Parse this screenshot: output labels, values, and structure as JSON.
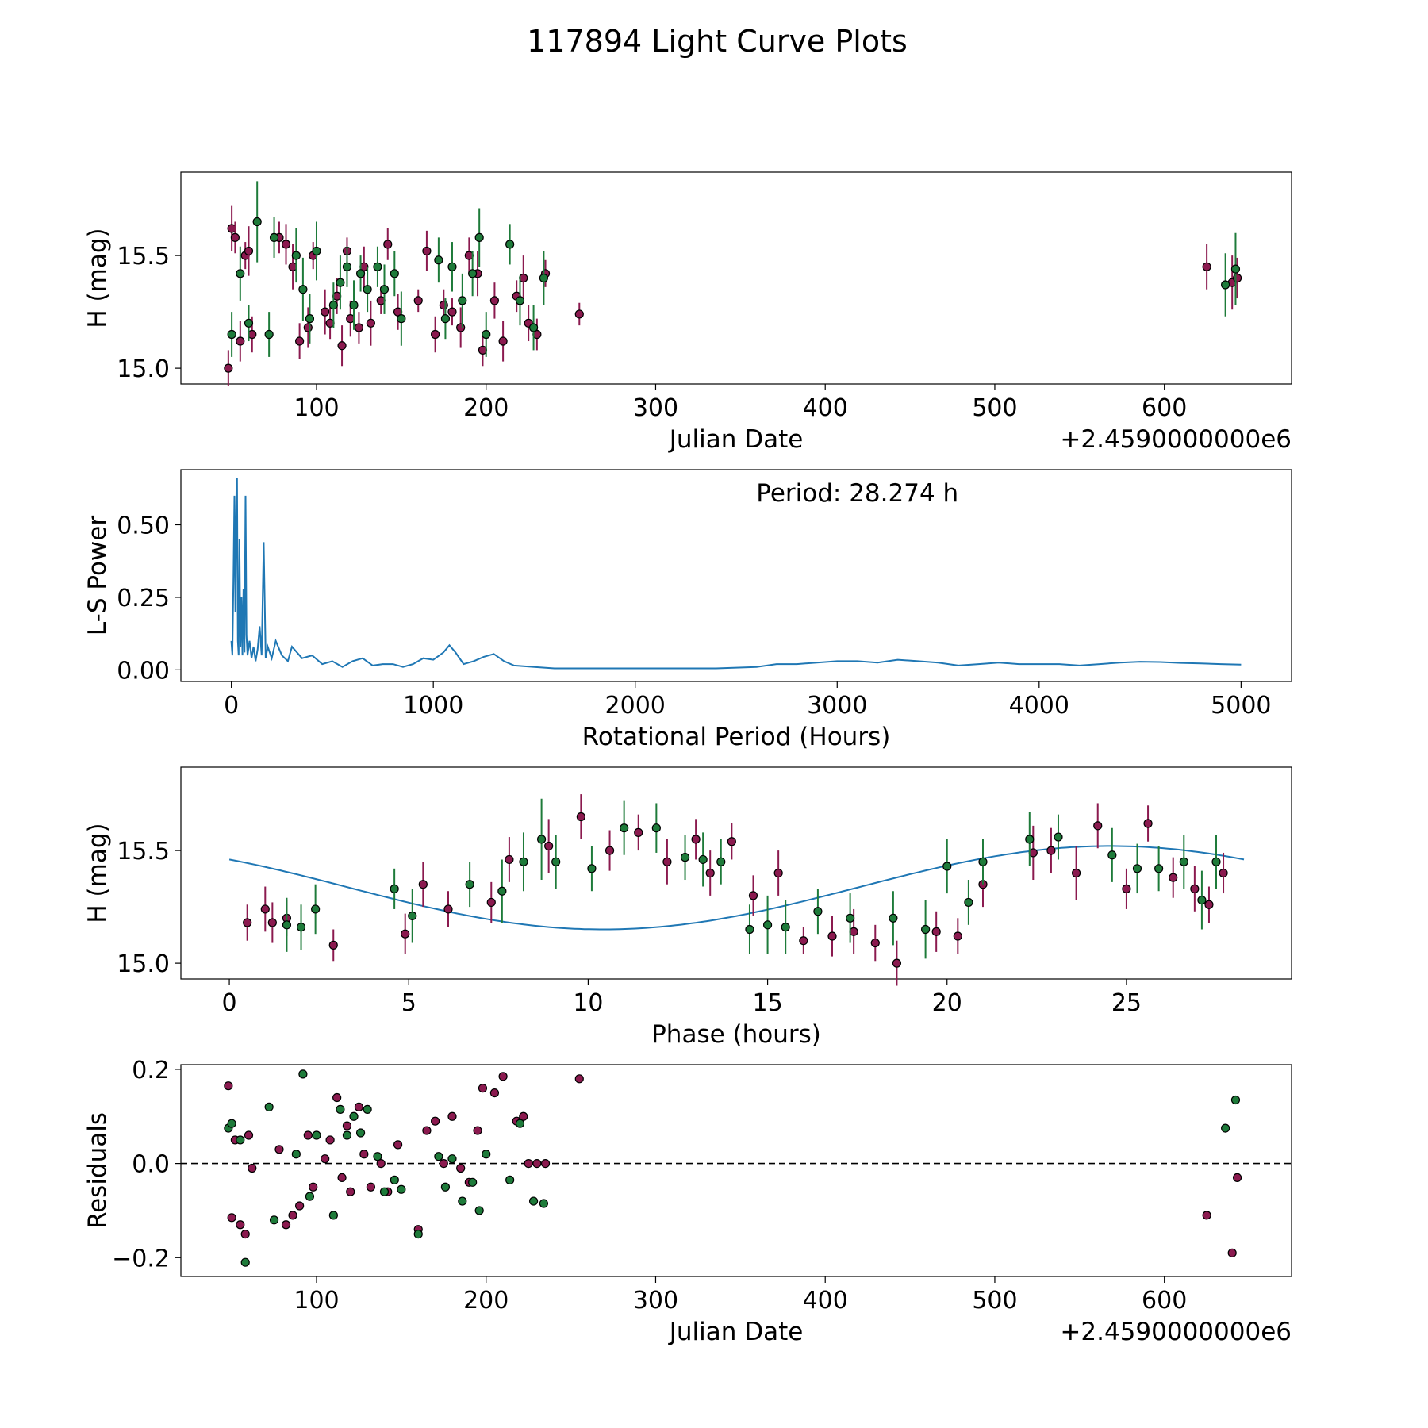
{
  "figure": {
    "title": "117894 Light Curve Plots",
    "colors": {
      "red": "#8b1a4f",
      "green": "#1e7b3a",
      "line": "#1f77b4",
      "edge": "#000000"
    }
  },
  "chart_data": [
    {
      "type": "scatter",
      "id": "lightcurve",
      "xlabel": "Julian Date",
      "ylabel": "H (mag)",
      "offset_label": "+2.4590000000e6",
      "xlim": [
        20,
        675
      ],
      "ylim": [
        14.93,
        15.87
      ],
      "xticks": [
        100,
        200,
        300,
        400,
        500,
        600
      ],
      "yticks": [
        15.0,
        15.5
      ],
      "ytick_labels": [
        "15.0",
        "15.5"
      ],
      "series": [
        {
          "name": "red",
          "x": [
            48,
            50,
            52,
            55,
            58,
            60,
            62,
            78,
            82,
            86,
            90,
            95,
            98,
            105,
            108,
            112,
            115,
            118,
            120,
            125,
            128,
            132,
            138,
            142,
            148,
            160,
            165,
            170,
            175,
            180,
            185,
            190,
            195,
            198,
            205,
            210,
            218,
            222,
            225,
            230,
            235,
            255,
            625,
            640,
            643
          ],
          "y": [
            15.0,
            15.62,
            15.58,
            15.12,
            15.5,
            15.52,
            15.15,
            15.58,
            15.55,
            15.45,
            15.12,
            15.18,
            15.5,
            15.25,
            15.2,
            15.32,
            15.1,
            15.52,
            15.22,
            15.18,
            15.45,
            15.2,
            15.3,
            15.55,
            15.25,
            15.3,
            15.52,
            15.15,
            15.28,
            15.25,
            15.18,
            15.5,
            15.42,
            15.08,
            15.3,
            15.12,
            15.32,
            15.4,
            15.2,
            15.15,
            15.42,
            15.24,
            15.45,
            15.38,
            15.4
          ],
          "err": [
            0.08,
            0.1,
            0.07,
            0.09,
            0.06,
            0.11,
            0.08,
            0.07,
            0.09,
            0.1,
            0.08,
            0.09,
            0.06,
            0.1,
            0.07,
            0.08,
            0.09,
            0.06,
            0.08,
            0.07,
            0.09,
            0.1,
            0.06,
            0.07,
            0.08,
            0.05,
            0.09,
            0.08,
            0.07,
            0.06,
            0.09,
            0.08,
            0.1,
            0.07,
            0.08,
            0.09,
            0.07,
            0.1,
            0.08,
            0.07,
            0.06,
            0.05,
            0.1,
            0.12,
            0.09
          ]
        },
        {
          "name": "green",
          "x": [
            50,
            55,
            60,
            65,
            72,
            75,
            88,
            92,
            96,
            100,
            110,
            114,
            118,
            122,
            126,
            130,
            136,
            140,
            146,
            150,
            172,
            176,
            180,
            186,
            192,
            196,
            200,
            214,
            220,
            228,
            234,
            636,
            642
          ],
          "y": [
            15.15,
            15.42,
            15.2,
            15.65,
            15.15,
            15.58,
            15.5,
            15.35,
            15.22,
            15.52,
            15.28,
            15.38,
            15.45,
            15.28,
            15.42,
            15.35,
            15.45,
            15.35,
            15.42,
            15.22,
            15.48,
            15.22,
            15.45,
            15.3,
            15.42,
            15.58,
            15.15,
            15.55,
            15.3,
            15.18,
            15.4,
            15.37,
            15.44
          ],
          "err": [
            0.1,
            0.12,
            0.08,
            0.18,
            0.1,
            0.09,
            0.12,
            0.14,
            0.11,
            0.13,
            0.1,
            0.12,
            0.09,
            0.11,
            0.08,
            0.1,
            0.09,
            0.11,
            0.1,
            0.12,
            0.1,
            0.09,
            0.11,
            0.12,
            0.1,
            0.13,
            0.1,
            0.09,
            0.11,
            0.1,
            0.12,
            0.14,
            0.16
          ]
        }
      ]
    },
    {
      "type": "line",
      "id": "periodogram",
      "xlabel": "Rotational Period (Hours)",
      "ylabel": "L-S Power",
      "annotation": "Period: 28.274 h",
      "xlim": [
        -250,
        5250
      ],
      "ylim": [
        -0.04,
        0.69
      ],
      "xticks": [
        0,
        1000,
        2000,
        3000,
        4000,
        5000
      ],
      "yticks": [
        0.0,
        0.25,
        0.5
      ],
      "ytick_labels": [
        "0.00",
        "0.25",
        "0.50"
      ],
      "x": [
        0,
        5,
        10,
        15,
        20,
        25,
        28,
        32,
        36,
        40,
        45,
        50,
        55,
        60,
        65,
        70,
        75,
        80,
        90,
        100,
        110,
        120,
        130,
        140,
        150,
        160,
        170,
        180,
        200,
        220,
        250,
        280,
        300,
        350,
        400,
        450,
        500,
        550,
        600,
        650,
        700,
        750,
        800,
        850,
        900,
        950,
        1000,
        1050,
        1080,
        1110,
        1150,
        1200,
        1250,
        1300,
        1350,
        1400,
        1500,
        1600,
        1800,
        2000,
        2200,
        2400,
        2600,
        2700,
        2800,
        2900,
        3000,
        3100,
        3200,
        3300,
        3400,
        3500,
        3600,
        3700,
        3800,
        3900,
        4000,
        4100,
        4200,
        4300,
        4400,
        4500,
        4600,
        4700,
        4800,
        4900,
        5000
      ],
      "y": [
        0.1,
        0.05,
        0.3,
        0.6,
        0.2,
        0.62,
        0.66,
        0.1,
        0.05,
        0.45,
        0.08,
        0.25,
        0.05,
        0.28,
        0.06,
        0.6,
        0.12,
        0.05,
        0.1,
        0.04,
        0.08,
        0.03,
        0.07,
        0.15,
        0.05,
        0.44,
        0.04,
        0.08,
        0.04,
        0.1,
        0.05,
        0.03,
        0.08,
        0.04,
        0.05,
        0.02,
        0.03,
        0.01,
        0.03,
        0.04,
        0.015,
        0.02,
        0.02,
        0.01,
        0.02,
        0.04,
        0.035,
        0.06,
        0.085,
        0.06,
        0.02,
        0.03,
        0.045,
        0.055,
        0.03,
        0.015,
        0.01,
        0.005,
        0.005,
        0.005,
        0.005,
        0.005,
        0.01,
        0.02,
        0.02,
        0.025,
        0.03,
        0.03,
        0.025,
        0.035,
        0.03,
        0.025,
        0.015,
        0.02,
        0.025,
        0.02,
        0.02,
        0.02,
        0.015,
        0.02,
        0.025,
        0.028,
        0.027,
        0.024,
        0.022,
        0.02,
        0.018
      ]
    },
    {
      "type": "scatter",
      "id": "phase",
      "xlabel": "Phase (hours)",
      "ylabel": "H (mag)",
      "xlim": [
        -1.35,
        29.6
      ],
      "ylim": [
        14.93,
        15.87
      ],
      "xticks": [
        0,
        5,
        10,
        15,
        20,
        25
      ],
      "yticks": [
        15.0,
        15.5
      ],
      "ytick_labels": [
        "15.0",
        "15.5"
      ],
      "model": {
        "period": 28.274,
        "mean": 15.335,
        "amplitude": 0.185,
        "phase_hours": 3.35
      },
      "series": [
        {
          "name": "red",
          "x": [
            0.5,
            1.0,
            1.2,
            1.6,
            2.9,
            4.9,
            5.4,
            6.1,
            7.3,
            7.8,
            8.9,
            9.8,
            10.6,
            11.4,
            12.2,
            13.0,
            13.4,
            14.0,
            14.6,
            15.3,
            16.0,
            16.8,
            17.4,
            18.0,
            18.6,
            19.7,
            20.3,
            21.0,
            22.4,
            22.9,
            23.6,
            24.2,
            25.0,
            25.6,
            26.3,
            26.9,
            27.3,
            27.7
          ],
          "y": [
            15.18,
            15.24,
            15.18,
            15.2,
            15.08,
            15.13,
            15.35,
            15.24,
            15.27,
            15.46,
            15.52,
            15.65,
            15.5,
            15.58,
            15.45,
            15.55,
            15.4,
            15.54,
            15.3,
            15.4,
            15.1,
            15.12,
            15.14,
            15.09,
            15.0,
            15.14,
            15.12,
            15.35,
            15.49,
            15.5,
            15.4,
            15.61,
            15.33,
            15.62,
            15.38,
            15.33,
            15.26,
            15.4
          ],
          "err": [
            0.08,
            0.1,
            0.09,
            0.08,
            0.07,
            0.09,
            0.1,
            0.08,
            0.09,
            0.1,
            0.12,
            0.1,
            0.09,
            0.08,
            0.1,
            0.09,
            0.1,
            0.08,
            0.09,
            0.1,
            0.06,
            0.09,
            0.1,
            0.08,
            0.1,
            0.09,
            0.08,
            0.1,
            0.12,
            0.1,
            0.12,
            0.1,
            0.09,
            0.08,
            0.09,
            0.1,
            0.08,
            0.09
          ]
        },
        {
          "name": "green",
          "x": [
            1.6,
            2.0,
            2.4,
            4.6,
            5.1,
            6.7,
            7.6,
            8.2,
            8.7,
            9.1,
            10.1,
            11.0,
            11.9,
            12.7,
            13.2,
            13.7,
            14.5,
            15.0,
            15.5,
            16.4,
            17.3,
            18.5,
            19.4,
            20.0,
            20.6,
            21.0,
            22.3,
            23.1,
            24.6,
            25.3,
            25.9,
            26.6,
            27.1,
            27.5
          ],
          "y": [
            15.17,
            15.16,
            15.24,
            15.33,
            15.21,
            15.35,
            15.32,
            15.45,
            15.55,
            15.45,
            15.42,
            15.6,
            15.6,
            15.47,
            15.46,
            15.45,
            15.15,
            15.17,
            15.16,
            15.23,
            15.2,
            15.2,
            15.15,
            15.43,
            15.27,
            15.45,
            15.55,
            15.56,
            15.48,
            15.42,
            15.42,
            15.45,
            15.28,
            15.45
          ],
          "err": [
            0.12,
            0.1,
            0.11,
            0.09,
            0.12,
            0.1,
            0.14,
            0.13,
            0.18,
            0.12,
            0.1,
            0.12,
            0.11,
            0.1,
            0.12,
            0.1,
            0.11,
            0.13,
            0.12,
            0.1,
            0.11,
            0.12,
            0.13,
            0.12,
            0.1,
            0.1,
            0.12,
            0.1,
            0.12,
            0.11,
            0.1,
            0.12,
            0.13,
            0.12
          ]
        }
      ]
    },
    {
      "type": "scatter",
      "id": "residuals",
      "xlabel": "Julian Date",
      "ylabel": "Residuals",
      "offset_label": "+2.4590000000e6",
      "xlim": [
        20,
        675
      ],
      "ylim": [
        -0.24,
        0.21
      ],
      "xticks": [
        100,
        200,
        300,
        400,
        500,
        600
      ],
      "yticks": [
        -0.2,
        0.0,
        0.2
      ],
      "ytick_labels": [
        "−0.2",
        "0.0",
        "0.2"
      ],
      "series": [
        {
          "name": "red",
          "x": [
            48,
            50,
            52,
            55,
            58,
            60,
            62,
            78,
            82,
            86,
            90,
            95,
            98,
            105,
            108,
            112,
            115,
            118,
            120,
            125,
            128,
            132,
            138,
            142,
            148,
            160,
            165,
            170,
            175,
            180,
            185,
            190,
            195,
            198,
            205,
            210,
            218,
            222,
            225,
            230,
            235,
            255,
            625,
            640,
            643
          ],
          "y": [
            0.165,
            -0.115,
            0.05,
            -0.13,
            -0.15,
            0.06,
            -0.01,
            0.03,
            -0.13,
            -0.11,
            -0.09,
            0.06,
            -0.05,
            0.01,
            0.05,
            0.14,
            -0.03,
            0.08,
            -0.06,
            0.12,
            0.02,
            -0.05,
            0.0,
            -0.06,
            0.04,
            -0.14,
            0.07,
            0.09,
            0.0,
            0.1,
            -0.01,
            -0.04,
            0.07,
            0.16,
            0.15,
            0.185,
            0.09,
            0.1,
            0.0,
            0.0,
            0.0,
            0.18,
            -0.11,
            -0.19,
            -0.03
          ],
          "err": []
        },
        {
          "name": "green",
          "x": [
            48,
            50,
            55,
            58,
            72,
            75,
            88,
            92,
            96,
            100,
            110,
            114,
            118,
            122,
            126,
            130,
            136,
            140,
            146,
            150,
            160,
            172,
            176,
            180,
            186,
            192,
            196,
            200,
            214,
            220,
            228,
            234,
            636,
            642
          ],
          "y": [
            0.075,
            0.085,
            0.05,
            -0.21,
            0.12,
            -0.12,
            0.02,
            0.19,
            -0.07,
            0.06,
            -0.11,
            0.115,
            0.06,
            0.1,
            0.065,
            0.115,
            0.015,
            -0.06,
            -0.035,
            -0.055,
            -0.15,
            0.015,
            -0.05,
            0.01,
            -0.08,
            -0.04,
            -0.1,
            0.02,
            -0.035,
            0.085,
            -0.08,
            -0.085,
            0.075,
            0.135
          ],
          "err": []
        }
      ]
    }
  ]
}
